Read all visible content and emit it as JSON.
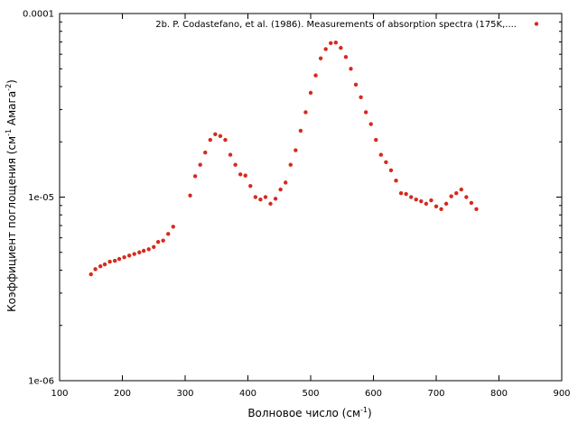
{
  "chart_data": {
    "type": "scatter",
    "xlabel": "Волновое число (см",
    "xlabel_sup": "-1",
    "xlabel_end": ")",
    "ylabel": "Коэффициент поглощения (см",
    "ylabel_sup1": "-1",
    "ylabel_mid": " Амага",
    "ylabel_sup2": "-2",
    "ylabel_end": ")",
    "xlim": [
      100,
      900
    ],
    "ylim": [
      1e-06,
      0.0001
    ],
    "y_scale": "log",
    "x_ticks": [
      100,
      200,
      300,
      400,
      500,
      600,
      700,
      800,
      900
    ],
    "x_tick_labels": [
      "100",
      "200",
      "300",
      "400",
      "500",
      "600",
      "700",
      "800",
      "900"
    ],
    "y_ticks": [
      1e-06,
      1e-05,
      0.0001
    ],
    "y_tick_labels": [
      "1e-06",
      "1e-05",
      "0.0001"
    ],
    "grid": false,
    "legend_position": "top-right",
    "series": [
      {
        "name": "2b. P. Codastefano, et al. (1986). Measurements of absorption spectra (175K,....",
        "color": "#d62a1e",
        "points": [
          [
            150,
            3.8e-06
          ],
          [
            157,
            4.05e-06
          ],
          [
            165,
            4.2e-06
          ],
          [
            172,
            4.3e-06
          ],
          [
            180,
            4.45e-06
          ],
          [
            188,
            4.5e-06
          ],
          [
            195,
            4.6e-06
          ],
          [
            203,
            4.7e-06
          ],
          [
            211,
            4.8e-06
          ],
          [
            219,
            4.9e-06
          ],
          [
            227,
            5e-06
          ],
          [
            234,
            5.1e-06
          ],
          [
            242,
            5.2e-06
          ],
          [
            250,
            5.35e-06
          ],
          [
            257,
            5.7e-06
          ],
          [
            265,
            5.8e-06
          ],
          [
            273,
            6.3e-06
          ],
          [
            281,
            6.9e-06
          ],
          [
            308,
            1.02e-05
          ],
          [
            316,
            1.3e-05
          ],
          [
            324,
            1.5e-05
          ],
          [
            332,
            1.75e-05
          ],
          [
            340,
            2.05e-05
          ],
          [
            348,
            2.2e-05
          ],
          [
            356,
            2.15e-05
          ],
          [
            364,
            2.05e-05
          ],
          [
            372,
            1.7e-05
          ],
          [
            380,
            1.5e-05
          ],
          [
            388,
            1.33e-05
          ],
          [
            396,
            1.31e-05
          ],
          [
            404,
            1.15e-05
          ],
          [
            412,
            1e-05
          ],
          [
            420,
            9.7e-06
          ],
          [
            428,
            1e-05
          ],
          [
            436,
            9.2e-06
          ],
          [
            444,
            9.8e-06
          ],
          [
            452,
            1.1e-05
          ],
          [
            460,
            1.2e-05
          ],
          [
            468,
            1.5e-05
          ],
          [
            476,
            1.8e-05
          ],
          [
            484,
            2.3e-05
          ],
          [
            492,
            2.9e-05
          ],
          [
            500,
            3.7e-05
          ],
          [
            508,
            4.6e-05
          ],
          [
            516,
            5.7e-05
          ],
          [
            524,
            6.4e-05
          ],
          [
            532,
            6.9e-05
          ],
          [
            540,
            6.95e-05
          ],
          [
            548,
            6.5e-05
          ],
          [
            556,
            5.8e-05
          ],
          [
            564,
            5e-05
          ],
          [
            572,
            4.1e-05
          ],
          [
            580,
            3.5e-05
          ],
          [
            588,
            2.9e-05
          ],
          [
            596,
            2.5e-05
          ],
          [
            604,
            2.05e-05
          ],
          [
            612,
            1.7e-05
          ],
          [
            620,
            1.55e-05
          ],
          [
            628,
            1.4e-05
          ],
          [
            636,
            1.23e-05
          ],
          [
            644,
            1.05e-05
          ],
          [
            652,
            1.04e-05
          ],
          [
            660,
            1e-05
          ],
          [
            668,
            9.7e-06
          ],
          [
            676,
            9.5e-06
          ],
          [
            684,
            9.2e-06
          ],
          [
            692,
            9.6e-06
          ],
          [
            700,
            8.9e-06
          ],
          [
            708,
            8.6e-06
          ],
          [
            716,
            9.2e-06
          ],
          [
            724,
            1.01e-05
          ],
          [
            732,
            1.05e-05
          ],
          [
            740,
            1.1e-05
          ],
          [
            748,
            1e-05
          ],
          [
            756,
            9.3e-06
          ],
          [
            764,
            8.6e-06
          ]
        ]
      }
    ]
  }
}
